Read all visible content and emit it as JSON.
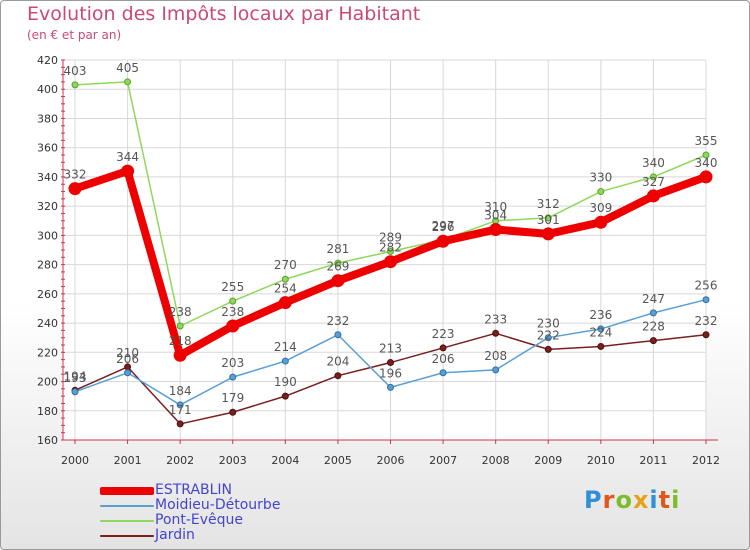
{
  "header": {
    "title": "Evolution des Impôts locaux par Habitant",
    "subtitle": "(en € et par an)"
  },
  "logo": {
    "text": "Proxiti",
    "letter_colors": [
      "#2f8fd8",
      "#e0561c",
      "#7cbd2e",
      "#e8a21a",
      "#2f8fd8",
      "#e0561c",
      "#7cbd2e"
    ]
  },
  "chart_data": {
    "type": "line",
    "title": "Evolution des Impôts locaux par Habitant",
    "subtitle": "(en € et par an)",
    "xlabel": "",
    "ylabel": "",
    "x": [
      "2000",
      "2001",
      "2002",
      "2003",
      "2004",
      "2005",
      "2006",
      "2007",
      "2008",
      "2009",
      "2010",
      "2011",
      "2012"
    ],
    "ylim": [
      160,
      420
    ],
    "yticks": [
      "160",
      "180",
      "200",
      "220",
      "240",
      "260",
      "280",
      "300",
      "320",
      "340",
      "360",
      "380",
      "400",
      "420"
    ],
    "grid": true,
    "legend_position": "bottom-left",
    "series": [
      {
        "name": "ESTRABLIN",
        "color": "#ee0000",
        "values": [
          332,
          344,
          218,
          238,
          254,
          269,
          282,
          296,
          304,
          301,
          309,
          327,
          340
        ]
      },
      {
        "name": "Moidieu-Détourbe",
        "color": "#5a9fd4",
        "values": [
          193,
          206,
          184,
          203,
          214,
          232,
          196,
          206,
          208,
          230,
          236,
          247,
          256
        ]
      },
      {
        "name": "Pont-Evêque",
        "color": "#8ed85a",
        "values": [
          403,
          405,
          238,
          255,
          270,
          281,
          289,
          297,
          310,
          312,
          330,
          340,
          355
        ]
      },
      {
        "name": "Jardin",
        "color": "#7a1f1f",
        "values": [
          194,
          210,
          171,
          179,
          190,
          204,
          213,
          223,
          233,
          222,
          224,
          228,
          232
        ]
      }
    ]
  }
}
